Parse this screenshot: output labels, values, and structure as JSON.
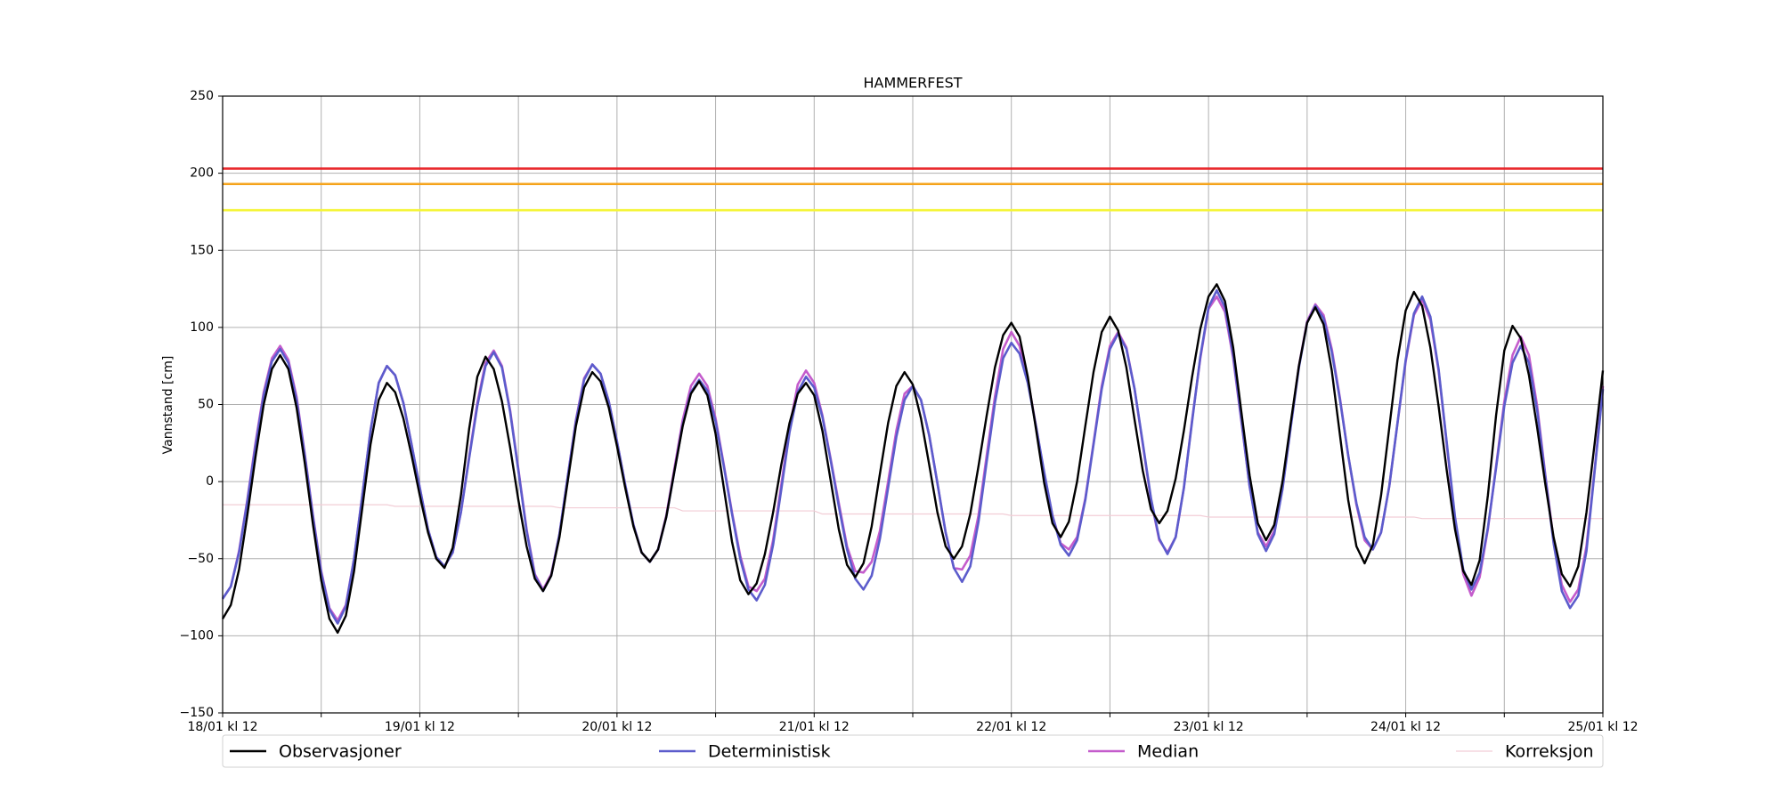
{
  "chart_data": {
    "type": "line",
    "title": "HAMMERFEST",
    "ylabel": "Vannstand [cm]",
    "xlim": [
      0,
      168
    ],
    "xticks": [
      {
        "value": 0,
        "label": "18/01 kl 12"
      },
      {
        "value": 24,
        "label": "19/01 kl 12"
      },
      {
        "value": 48,
        "label": "20/01 kl 12"
      },
      {
        "value": 72,
        "label": "21/01 kl 12"
      },
      {
        "value": 96,
        "label": "22/01 kl 12"
      },
      {
        "value": 120,
        "label": "23/01 kl 12"
      },
      {
        "value": 144,
        "label": "24/01 kl 12"
      },
      {
        "value": 168,
        "label": "25/01 kl 12"
      }
    ],
    "xminorticks": [
      12,
      36,
      60,
      84,
      108,
      132,
      156
    ],
    "ylim": [
      -150,
      250
    ],
    "yticks": [
      {
        "value": -150,
        "label": "−150"
      },
      {
        "value": -100,
        "label": "−100"
      },
      {
        "value": -50,
        "label": "−50"
      },
      0,
      50,
      100,
      150,
      200,
      250
    ],
    "grid": true,
    "legend": "bottom",
    "thresholds": [
      {
        "value": 203,
        "color": "#e8262a"
      },
      {
        "value": 193,
        "color": "#f5a31a"
      },
      {
        "value": 176,
        "color": "#f5f53a"
      }
    ],
    "x": [
      0,
      1,
      2,
      3,
      4,
      5,
      6,
      7,
      8,
      9,
      10,
      11,
      12,
      13,
      14,
      15,
      16,
      17,
      18,
      19,
      20,
      21,
      22,
      23,
      24,
      25,
      26,
      27,
      28,
      29,
      30,
      31,
      32,
      33,
      34,
      35,
      36,
      37,
      38,
      39,
      40,
      41,
      42,
      43,
      44,
      45,
      46,
      47,
      48,
      49,
      50,
      51,
      52,
      53,
      54,
      55,
      56,
      57,
      58,
      59,
      60,
      61,
      62,
      63,
      64,
      65,
      66,
      67,
      68,
      69,
      70,
      71,
      72,
      73,
      74,
      75,
      76,
      77,
      78,
      79,
      80,
      81,
      82,
      83,
      84,
      85,
      86,
      87,
      88,
      89,
      90,
      91,
      92,
      93,
      94,
      95,
      96,
      97,
      98,
      99,
      100,
      101,
      102,
      103,
      104,
      105,
      106,
      107,
      108,
      109,
      110,
      111,
      112,
      113,
      114,
      115,
      116,
      117,
      118,
      119,
      120,
      121,
      122,
      123,
      124,
      125,
      126,
      127,
      128,
      129,
      130,
      131,
      132,
      133,
      134,
      135,
      136,
      137,
      138,
      139,
      140,
      141,
      142,
      143,
      144,
      145,
      146,
      147,
      148,
      149,
      150,
      151,
      152,
      153,
      154,
      155,
      156,
      157,
      158,
      159,
      160,
      161,
      162,
      163,
      164,
      165,
      166,
      167,
      168
    ],
    "series": [
      {
        "name": "Observasjoner",
        "color": "#000000",
        "width": 2.4,
        "values": [
          -89,
          -80,
          -57,
          -22,
          16,
          50,
          73,
          82,
          73,
          48,
          12,
          -28,
          -64,
          -89,
          -98,
          -87,
          -58,
          -17,
          24,
          53,
          64,
          58,
          41,
          17,
          -9,
          -33,
          -50,
          -56,
          -43,
          -9,
          34,
          68,
          81,
          73,
          52,
          22,
          -12,
          -42,
          -63,
          -71,
          -61,
          -36,
          0,
          36,
          61,
          71,
          65,
          48,
          23,
          -4,
          -29,
          -46,
          -52,
          -44,
          -23,
          7,
          36,
          57,
          65,
          56,
          31,
          -4,
          -39,
          -64,
          -73,
          -66,
          -47,
          -20,
          11,
          38,
          57,
          64,
          56,
          33,
          1,
          -31,
          -54,
          -62,
          -53,
          -29,
          5,
          38,
          62,
          71,
          63,
          41,
          11,
          -20,
          -42,
          -50,
          -42,
          -21,
          10,
          43,
          74,
          95,
          103,
          94,
          68,
          34,
          -1,
          -27,
          -36,
          -26,
          0,
          36,
          71,
          97,
          107,
          98,
          74,
          40,
          7,
          -18,
          -27,
          -19,
          2,
          33,
          68,
          99,
          120,
          128,
          117,
          87,
          45,
          4,
          -27,
          -38,
          -28,
          0,
          38,
          75,
          103,
          113,
          102,
          72,
          30,
          -12,
          -42,
          -53,
          -41,
          -9,
          35,
          79,
          111,
          123,
          114,
          87,
          49,
          7,
          -31,
          -58,
          -67,
          -51,
          -9,
          43,
          85,
          101,
          93,
          69,
          35,
          -2,
          -36,
          -60,
          -68,
          -55,
          -20,
          25,
          72
        ]
      },
      {
        "name": "Deterministisk",
        "color": "#5c5ccc",
        "width": 2.6,
        "values": [
          -76,
          -68,
          -46,
          -13,
          23,
          56,
          78,
          86,
          77,
          53,
          17,
          -23,
          -59,
          -83,
          -92,
          -81,
          -50,
          -9,
          33,
          64,
          75,
          69,
          51,
          24,
          -4,
          -31,
          -49,
          -55,
          -46,
          -20,
          15,
          49,
          75,
          84,
          74,
          45,
          7,
          -32,
          -61,
          -71,
          -61,
          -34,
          3,
          39,
          66,
          76,
          70,
          52,
          26,
          -2,
          -28,
          -46,
          -52,
          -44,
          -23,
          7,
          37,
          58,
          66,
          59,
          39,
          10,
          -21,
          -50,
          -70,
          -77,
          -67,
          -41,
          -5,
          32,
          58,
          68,
          61,
          42,
          14,
          -16,
          -44,
          -63,
          -70,
          -61,
          -37,
          -4,
          29,
          53,
          62,
          53,
          30,
          -1,
          -33,
          -56,
          -65,
          -55,
          -26,
          13,
          51,
          80,
          90,
          83,
          64,
          36,
          6,
          -22,
          -41,
          -48,
          -38,
          -12,
          24,
          60,
          86,
          96,
          86,
          60,
          25,
          -11,
          -37,
          -47,
          -36,
          -4,
          39,
          81,
          113,
          124,
          113,
          82,
          40,
          -3,
          -34,
          -45,
          -34,
          -5,
          35,
          74,
          103,
          114,
          106,
          84,
          53,
          17,
          -14,
          -36,
          -44,
          -33,
          -3,
          38,
          79,
          109,
          120,
          107,
          73,
          25,
          -23,
          -57,
          -70,
          -59,
          -30,
          9,
          49,
          77,
          88,
          77,
          46,
          3,
          -40,
          -71,
          -82,
          -74,
          -45,
          7,
          60
        ]
      },
      {
        "name": "Median",
        "color": "#c45ccc",
        "width": 2.6,
        "values": [
          -76,
          -68,
          -45,
          -12,
          25,
          58,
          80,
          88,
          79,
          55,
          18,
          -22,
          -58,
          -82,
          -90,
          -80,
          -50,
          -9,
          33,
          64,
          75,
          69,
          51,
          24,
          -4,
          -31,
          -49,
          -55,
          -46,
          -20,
          16,
          51,
          77,
          85,
          75,
          46,
          8,
          -31,
          -60,
          -70,
          -60,
          -34,
          3,
          40,
          67,
          76,
          70,
          52,
          26,
          -2,
          -28,
          -46,
          -52,
          -44,
          -22,
          9,
          40,
          62,
          70,
          62,
          41,
          11,
          -20,
          -48,
          -68,
          -71,
          -63,
          -38,
          -2,
          35,
          63,
          72,
          64,
          43,
          15,
          -14,
          -42,
          -58,
          -59,
          -52,
          -32,
          0,
          33,
          57,
          62,
          53,
          30,
          -1,
          -33,
          -56,
          -57,
          -48,
          -22,
          17,
          55,
          86,
          97,
          88,
          66,
          36,
          5,
          -22,
          -40,
          -44,
          -36,
          -11,
          25,
          62,
          88,
          97,
          87,
          60,
          24,
          -12,
          -38,
          -46,
          -36,
          -4,
          40,
          80,
          112,
          120,
          110,
          80,
          39,
          -3,
          -33,
          -42,
          -32,
          -4,
          36,
          75,
          104,
          115,
          108,
          86,
          54,
          17,
          -15,
          -38,
          -44,
          -33,
          -3,
          38,
          78,
          108,
          118,
          105,
          72,
          24,
          -25,
          -60,
          -74,
          -62,
          -31,
          10,
          52,
          82,
          94,
          82,
          49,
          4,
          -38,
          -67,
          -78,
          -70,
          -42,
          8,
          62
        ]
      },
      {
        "name": "Korreksjon",
        "color": "#f2cdd6",
        "width": 1.2,
        "values": [
          -15,
          -15,
          -15,
          -15,
          -15,
          -15,
          -15,
          -15,
          -15,
          -15,
          -15,
          -15,
          -15,
          -15,
          -15,
          -15,
          -15,
          -15,
          -15,
          -15,
          -15,
          -16,
          -16,
          -16,
          -16,
          -16,
          -16,
          -16,
          -16,
          -16,
          -16,
          -16,
          -16,
          -16,
          -16,
          -16,
          -16,
          -16,
          -16,
          -16,
          -16,
          -17,
          -17,
          -17,
          -17,
          -17,
          -17,
          -17,
          -17,
          -17,
          -17,
          -17,
          -17,
          -17,
          -17,
          -17,
          -19,
          -19,
          -19,
          -19,
          -19,
          -19,
          -19,
          -19,
          -19,
          -19,
          -19,
          -19,
          -19,
          -19,
          -19,
          -19,
          -19,
          -21,
          -21,
          -21,
          -21,
          -21,
          -21,
          -21,
          -21,
          -21,
          -21,
          -21,
          -21,
          -21,
          -21,
          -21,
          -21,
          -21,
          -21,
          -21,
          -21,
          -21,
          -21,
          -21,
          -22,
          -22,
          -22,
          -22,
          -22,
          -22,
          -22,
          -22,
          -22,
          -22,
          -22,
          -22,
          -22,
          -22,
          -22,
          -22,
          -22,
          -22,
          -22,
          -22,
          -22,
          -22,
          -22,
          -22,
          -23,
          -23,
          -23,
          -23,
          -23,
          -23,
          -23,
          -23,
          -23,
          -23,
          -23,
          -23,
          -23,
          -23,
          -23,
          -23,
          -23,
          -23,
          -23,
          -23,
          -23,
          -23,
          -23,
          -23,
          -23,
          -23,
          -24,
          -24,
          -24,
          -24,
          -24,
          -24,
          -24,
          -24,
          -24,
          -24,
          -24,
          -24,
          -24,
          -24,
          -24,
          -24,
          -24,
          -24,
          -24,
          -24,
          -24,
          -24,
          -24
        ]
      }
    ]
  }
}
